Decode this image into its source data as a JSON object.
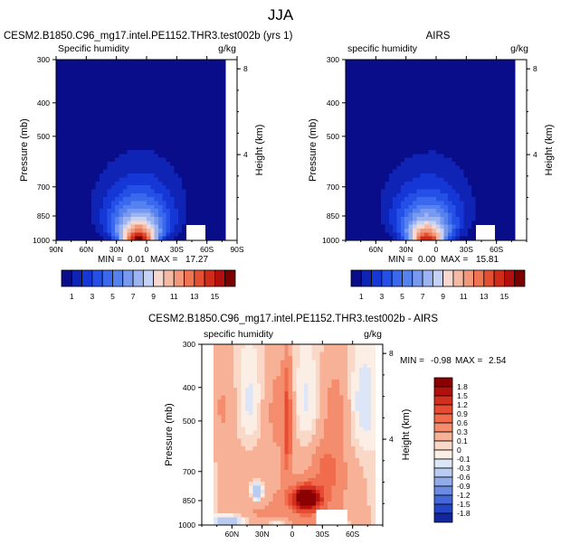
{
  "figure": {
    "title": "JJA"
  },
  "chart_data": [
    {
      "type": "heatmap",
      "id": "model",
      "title": "CESM2.B1850.C96_mg17.intel.PE1152.THR3.test002b (yrs 1)",
      "subtitle_left": "Specific humidity",
      "subtitle_right": "g/kg",
      "ylabel": "Pressure (mb)",
      "ylabel_right": "Height (km)",
      "y_ticks": [
        "300",
        "400",
        "500",
        "700",
        "850",
        "1000"
      ],
      "y_tick_values": [
        300,
        400,
        500,
        700,
        850,
        1000
      ],
      "height_ticks": [
        "8",
        "4"
      ],
      "height_tick_values": [
        8,
        4
      ],
      "x_ticks": [
        "90N",
        "60N",
        "30N",
        "0",
        "30S",
        "60S",
        "90S"
      ],
      "x_tick_values": [
        90,
        60,
        30,
        0,
        -30,
        -60,
        -90
      ],
      "xlim": [
        90,
        -90
      ],
      "ylim": [
        1000,
        300
      ],
      "min_label": "MIN =",
      "min_value": "0.01",
      "max_label": "MAX =",
      "max_value": "17.27",
      "stats": {
        "min": 0.01,
        "max": 17.27
      },
      "colorbar": {
        "levels": [
          0,
          1,
          2,
          3,
          4,
          5,
          6,
          7,
          8,
          9,
          10,
          11,
          12,
          13,
          14,
          15,
          16
        ],
        "labels": [
          "1",
          "3",
          "5",
          "7",
          "9",
          "11",
          "13",
          "15"
        ],
        "label_values": [
          1,
          3,
          5,
          7,
          9,
          11,
          13,
          15
        ],
        "colors": [
          "#0a0d8a",
          "#0f23b5",
          "#1537d6",
          "#2450e8",
          "#3a69ee",
          "#5682f0",
          "#7899f0",
          "#9db4f2",
          "#c4d3f5",
          "#f6d8cf",
          "#f5b9a5",
          "#f29779",
          "#ee7452",
          "#e54f31",
          "#d22b1a",
          "#b30f0c",
          "#7a0000"
        ]
      }
    },
    {
      "type": "heatmap",
      "id": "obs",
      "title": "AIRS",
      "subtitle_left": "specific humidity",
      "subtitle_right": "g/kg",
      "ylabel": "Pressure (mb)",
      "ylabel_right": "Height (km)",
      "y_ticks": [
        "300",
        "400",
        "500",
        "700",
        "850",
        "1000"
      ],
      "y_tick_values": [
        300,
        400,
        500,
        700,
        850,
        1000
      ],
      "height_ticks": [
        "8",
        "4"
      ],
      "height_tick_values": [
        8,
        4
      ],
      "x_ticks": [
        "60N",
        "30N",
        "0",
        "30S",
        "60S"
      ],
      "x_tick_values": [
        60,
        30,
        0,
        -30,
        -60
      ],
      "xlim": [
        90,
        -90
      ],
      "ylim": [
        1000,
        300
      ],
      "min_label": "MIN =",
      "min_value": "0.00",
      "max_label": "MAX =",
      "max_value": "15.81",
      "stats": {
        "min": 0.0,
        "max": 15.81
      },
      "colorbar": {
        "levels": [
          0,
          1,
          2,
          3,
          4,
          5,
          6,
          7,
          8,
          9,
          10,
          11,
          12,
          13,
          14,
          15,
          16
        ],
        "labels": [
          "1",
          "3",
          "5",
          "7",
          "9",
          "11",
          "13",
          "15"
        ],
        "label_values": [
          1,
          3,
          5,
          7,
          9,
          11,
          13,
          15
        ],
        "colors": [
          "#0a0d8a",
          "#0f23b5",
          "#1537d6",
          "#2450e8",
          "#3a69ee",
          "#5682f0",
          "#7899f0",
          "#9db4f2",
          "#c4d3f5",
          "#f6d8cf",
          "#f5b9a5",
          "#f29779",
          "#ee7452",
          "#e54f31",
          "#d22b1a",
          "#b30f0c",
          "#7a0000"
        ]
      }
    },
    {
      "type": "heatmap",
      "id": "diff",
      "title": "CESM2.B1850.C96_mg17.intel.PE1152.THR3.test002b - AIRS",
      "subtitle_left": "specific humidity",
      "subtitle_right": "g/kg",
      "ylabel": "Pressure (mb)",
      "ylabel_right": "Height (km)",
      "y_ticks": [
        "300",
        "400",
        "500",
        "700",
        "850",
        "1000"
      ],
      "y_tick_values": [
        300,
        400,
        500,
        700,
        850,
        1000
      ],
      "height_ticks": [
        "8",
        "4"
      ],
      "height_tick_values": [
        8,
        4
      ],
      "x_ticks": [
        "60N",
        "30N",
        "0",
        "30S",
        "60S"
      ],
      "x_tick_values": [
        60,
        30,
        0,
        -30,
        -60
      ],
      "xlim": [
        90,
        -90
      ],
      "ylim": [
        1000,
        300
      ],
      "min_label": "MIN =",
      "min_value": "-0.98",
      "max_label": "MAX =",
      "max_value": "2.54",
      "stats": {
        "min": -0.98,
        "max": 2.54
      },
      "colorbar": {
        "orientation": "vertical",
        "labels": [
          "1.8",
          "1.5",
          "1.2",
          "0.9",
          "0.6",
          "0.3",
          "0.1",
          "0",
          "-0.1",
          "-0.3",
          "-0.6",
          "-0.9",
          "-1.2",
          "-1.5",
          "-1.8"
        ],
        "colors": [
          "#8b0000",
          "#b3100d",
          "#d22f1f",
          "#e74c32",
          "#f06c4c",
          "#f48d6d",
          "#f7b196",
          "#fad8c8",
          "#fbeee4",
          "#dde6f7",
          "#b9cbf0",
          "#92acea",
          "#6b8be3",
          "#4367d8",
          "#2446c6",
          "#10279e"
        ]
      }
    }
  ]
}
